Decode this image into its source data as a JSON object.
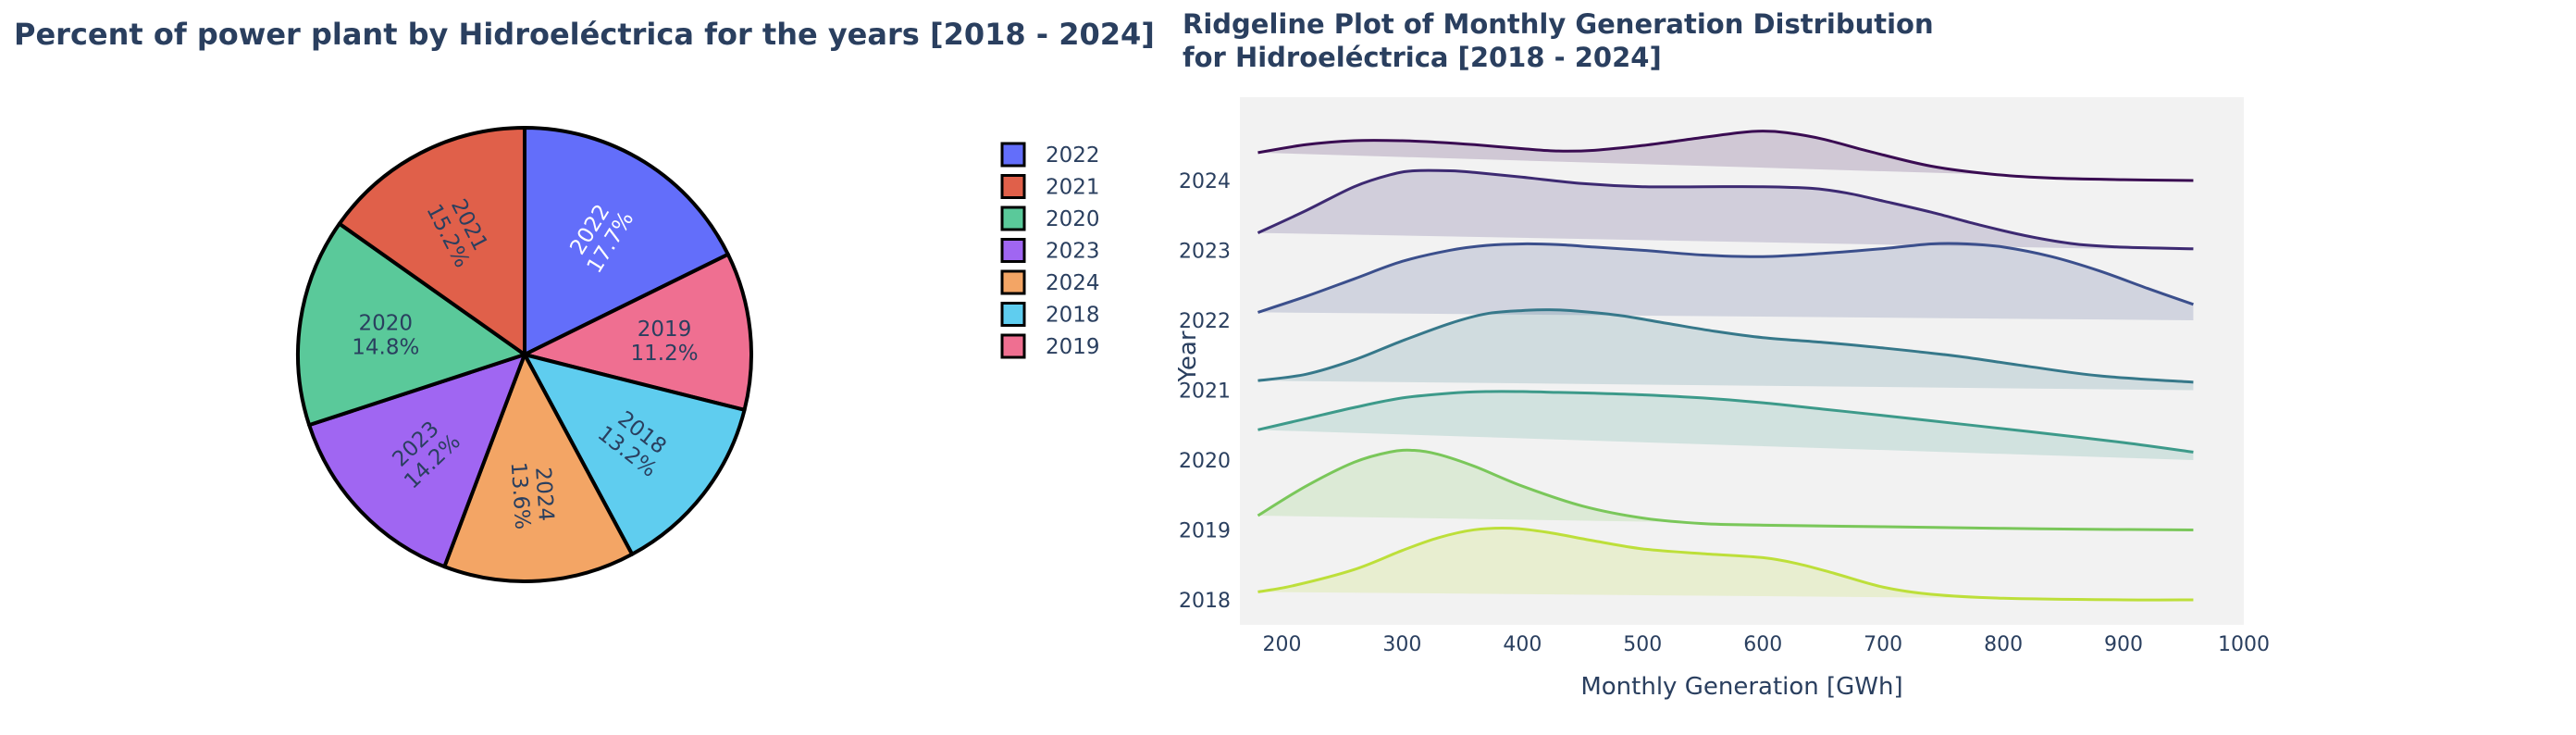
{
  "chart_data": [
    {
      "type": "pie",
      "title": "Percent of power plant by Hidroeléctrica for the years [2018 - 2024]",
      "slices": [
        {
          "label": "2022",
          "value": 17.7,
          "percent_label": "17.7%",
          "color": "#636efa",
          "text_color": "#ffffff"
        },
        {
          "label": "2019",
          "value": 11.2,
          "percent_label": "11.2%",
          "color": "#ef6f91",
          "text_color": "#2a3f5f"
        },
        {
          "label": "2018",
          "value": 13.2,
          "percent_label": "13.2%",
          "color": "#5fcdef",
          "text_color": "#2a3f5f"
        },
        {
          "label": "2024",
          "value": 13.6,
          "percent_label": "13.6%",
          "color": "#f3a565",
          "text_color": "#2a3f5f"
        },
        {
          "label": "2023",
          "value": 14.2,
          "percent_label": "14.2%",
          "color": "#a066f2",
          "text_color": "#2a3f5f"
        },
        {
          "label": "2020",
          "value": 14.8,
          "percent_label": "14.8%",
          "color": "#5ac99a",
          "text_color": "#2a3f5f"
        },
        {
          "label": "2021",
          "value": 15.2,
          "percent_label": "15.2%",
          "color": "#e0604a",
          "text_color": "#2a3f5f"
        }
      ],
      "legend": {
        "placement": "right",
        "entries": [
          {
            "label": "2022",
            "color": "#636efa"
          },
          {
            "label": "2021",
            "color": "#e0604a"
          },
          {
            "label": "2020",
            "color": "#5ac99a"
          },
          {
            "label": "2023",
            "color": "#a066f2"
          },
          {
            "label": "2024",
            "color": "#f3a565"
          },
          {
            "label": "2018",
            "color": "#5fcdef"
          },
          {
            "label": "2019",
            "color": "#ef6f91"
          }
        ]
      }
    },
    {
      "type": "area",
      "subtype": "ridgeline",
      "title_lines": [
        "Ridgeline Plot of Monthly Generation Distribution",
        "for Hidroeléctrica [2018 - 2024]"
      ],
      "xlabel": "Monthly Generation [GWh]",
      "ylabel": "Year",
      "xlim": [
        165,
        1000
      ],
      "x_ticks": [
        200,
        300,
        400,
        500,
        600,
        700,
        800,
        900,
        1000
      ],
      "grid": false,
      "plot_background": "#f2f2f2",
      "series": [
        {
          "name": "2018",
          "color": "#bddf3a",
          "x": [
            180,
            210,
            260,
            300,
            330,
            360,
            390,
            420,
            460,
            500,
            550,
            600,
            630,
            660,
            700,
            740,
            800,
            900,
            958
          ],
          "y": [
            0.1,
            0.18,
            0.38,
            0.62,
            0.78,
            0.88,
            0.9,
            0.85,
            0.74,
            0.64,
            0.58,
            0.53,
            0.45,
            0.33,
            0.16,
            0.07,
            0.02,
            0.0,
            0.0
          ]
        },
        {
          "name": "2019",
          "color": "#7ac75a",
          "x": [
            180,
            220,
            260,
            290,
            310,
            330,
            360,
            400,
            450,
            500,
            550,
            600,
            700,
            800,
            860,
            958
          ],
          "y": [
            0.18,
            0.55,
            0.85,
            0.98,
            1.0,
            0.95,
            0.8,
            0.55,
            0.3,
            0.15,
            0.08,
            0.06,
            0.04,
            0.02,
            0.01,
            0.0
          ]
        },
        {
          "name": "2020",
          "color": "#3d9a8a",
          "x": [
            180,
            220,
            260,
            300,
            340,
            370,
            400,
            430,
            460,
            500,
            550,
            600,
            650,
            700,
            760,
            820,
            900,
            958
          ],
          "y": [
            0.38,
            0.52,
            0.66,
            0.78,
            0.84,
            0.86,
            0.86,
            0.85,
            0.84,
            0.82,
            0.78,
            0.72,
            0.64,
            0.56,
            0.46,
            0.36,
            0.22,
            0.1
          ]
        },
        {
          "name": "2021",
          "color": "#36788a",
          "x": [
            180,
            220,
            260,
            300,
            340,
            370,
            400,
            420,
            440,
            480,
            520,
            560,
            600,
            650,
            700,
            760,
            820,
            880,
            958
          ],
          "y": [
            0.12,
            0.2,
            0.38,
            0.62,
            0.84,
            0.96,
            1.0,
            1.01,
            1.0,
            0.94,
            0.84,
            0.74,
            0.66,
            0.6,
            0.53,
            0.43,
            0.3,
            0.18,
            0.1
          ]
        },
        {
          "name": "2022",
          "color": "#3b4f8c",
          "x": [
            180,
            220,
            260,
            300,
            340,
            370,
            400,
            430,
            460,
            500,
            550,
            600,
            650,
            700,
            740,
            770,
            800,
            840,
            880,
            920,
            958
          ],
          "y": [
            0.1,
            0.3,
            0.52,
            0.74,
            0.88,
            0.94,
            0.96,
            0.95,
            0.92,
            0.88,
            0.82,
            0.8,
            0.84,
            0.9,
            0.96,
            0.96,
            0.92,
            0.8,
            0.62,
            0.4,
            0.2
          ]
        },
        {
          "name": "2023",
          "color": "#3d2a72",
          "x": [
            180,
            220,
            260,
            290,
            310,
            340,
            360,
            400,
            450,
            500,
            550,
            600,
            640,
            670,
            700,
            740,
            780,
            820,
            860,
            900,
            958
          ],
          "y": [
            0.22,
            0.5,
            0.8,
            0.95,
            1.0,
            1.0,
            0.98,
            0.92,
            0.84,
            0.8,
            0.8,
            0.8,
            0.78,
            0.72,
            0.62,
            0.48,
            0.32,
            0.18,
            0.08,
            0.04,
            0.02
          ]
        },
        {
          "name": "2024",
          "color": "#3a0c52",
          "x": [
            180,
            220,
            260,
            300,
            330,
            360,
            400,
            430,
            460,
            500,
            540,
            580,
            600,
            620,
            650,
            690,
            740,
            790,
            840,
            900,
            958
          ],
          "y": [
            0.35,
            0.45,
            0.5,
            0.5,
            0.48,
            0.45,
            0.4,
            0.37,
            0.38,
            0.44,
            0.52,
            0.6,
            0.62,
            0.6,
            0.52,
            0.36,
            0.18,
            0.08,
            0.03,
            0.01,
            0.0
          ]
        }
      ]
    }
  ]
}
